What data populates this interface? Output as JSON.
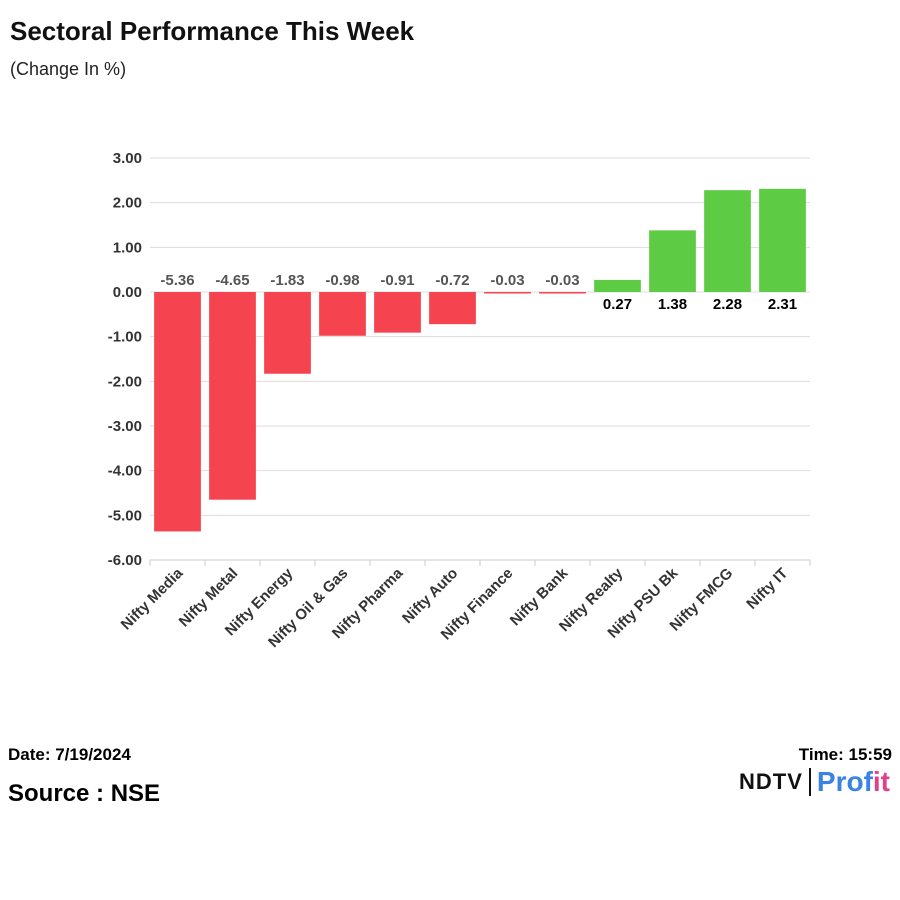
{
  "header": {
    "title": "Sectoral Performance This Week",
    "subtitle": "(Change In %)"
  },
  "footer": {
    "date": "Date: 7/19/2024",
    "time": "Time: 15:59",
    "source": "Source : NSE",
    "logo_left": "NDTV",
    "logo_right_main": "Prof",
    "logo_right_accent": "it"
  },
  "colors": {
    "negative": "#f5444f",
    "positive": "#5ecb44",
    "negative_label": "#555555",
    "positive_label": "#000000",
    "grid": "#dddddd",
    "axis_text": "#333333"
  },
  "chart_data": {
    "type": "bar",
    "title": "Sectoral Performance This Week",
    "subtitle": "(Change In %)",
    "xlabel": "",
    "ylabel": "",
    "ylim": [
      -6,
      3
    ],
    "yticks": [
      "3.00",
      "2.00",
      "1.00",
      "0.00",
      "-1.00",
      "-2.00",
      "-3.00",
      "-4.00",
      "-5.00",
      "-6.00"
    ],
    "ytick_values": [
      3,
      2,
      1,
      0,
      -1,
      -2,
      -3,
      -4,
      -5,
      -6
    ],
    "categories": [
      "Nifty Media",
      "Nifty Metal",
      "Nifty Energy",
      "Nifty Oil & Gas",
      "Nifty Pharma",
      "Nifty Auto",
      "Nifty Finance",
      "Nifty Bank",
      "Nifty Realty",
      "Nifty PSU Bk",
      "Nifty FMCG",
      "Nifty IT"
    ],
    "values": [
      -5.36,
      -4.65,
      -1.83,
      -0.98,
      -0.91,
      -0.72,
      -0.03,
      -0.03,
      0.27,
      1.38,
      2.28,
      2.31
    ],
    "labels": [
      "-5.36",
      "-4.65",
      "-1.83",
      "-0.98",
      "-0.91",
      "-0.72",
      "-0.03",
      "-0.03",
      "0.27",
      "1.38",
      "2.28",
      "2.31"
    ],
    "grid": true,
    "legend": "none"
  }
}
